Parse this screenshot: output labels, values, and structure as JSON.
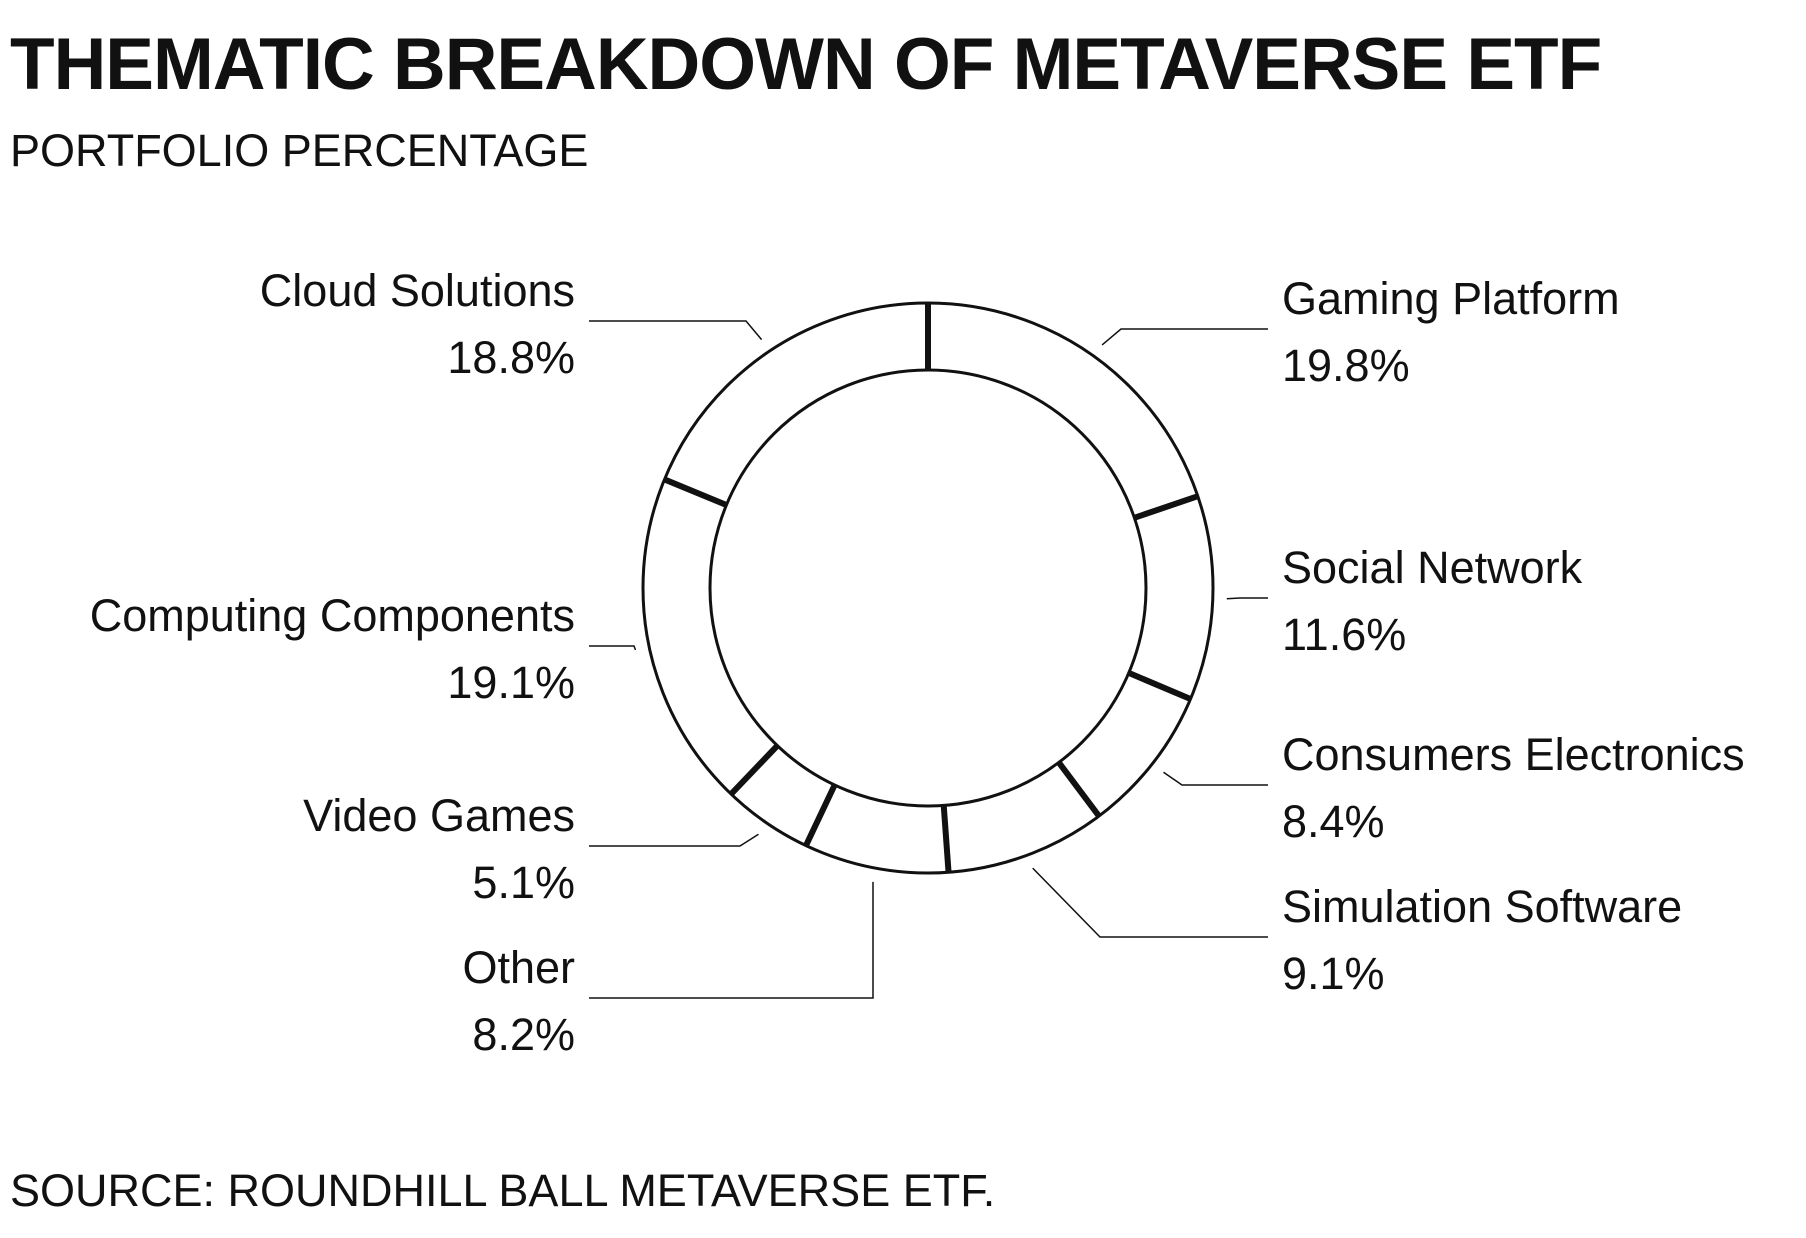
{
  "title": "THEMATIC BREAKDOWN OF METAVERSE ETF",
  "subtitle": "PORTFOLIO PERCENTAGE",
  "source": "SOURCE: ROUNDHILL BALL METAVERSE ETF.",
  "colors": {
    "ink": "#111111",
    "background": "#ffffff"
  },
  "chart_data": {
    "type": "pie",
    "style": "donut",
    "title": "THEMATIC BREAKDOWN OF METAVERSE ETF",
    "subtitle": "PORTFOLIO PERCENTAGE",
    "unit": "%",
    "categories": [
      "Gaming Platform",
      "Social Network",
      "Consumers Electronics",
      "Simulation Software",
      "Other",
      "Video Games",
      "Computing Components",
      "Cloud Solutions"
    ],
    "values": [
      19.8,
      11.6,
      8.4,
      9.1,
      8.2,
      5.1,
      19.1,
      18.8
    ],
    "value_labels": [
      "19.8%",
      "11.6%",
      "8.4%",
      "9.1%",
      "8.2%",
      "5.1%",
      "19.1%",
      "18.8%"
    ],
    "order": "clockwise from top",
    "legend": "none (direct labels with leader lines)"
  }
}
